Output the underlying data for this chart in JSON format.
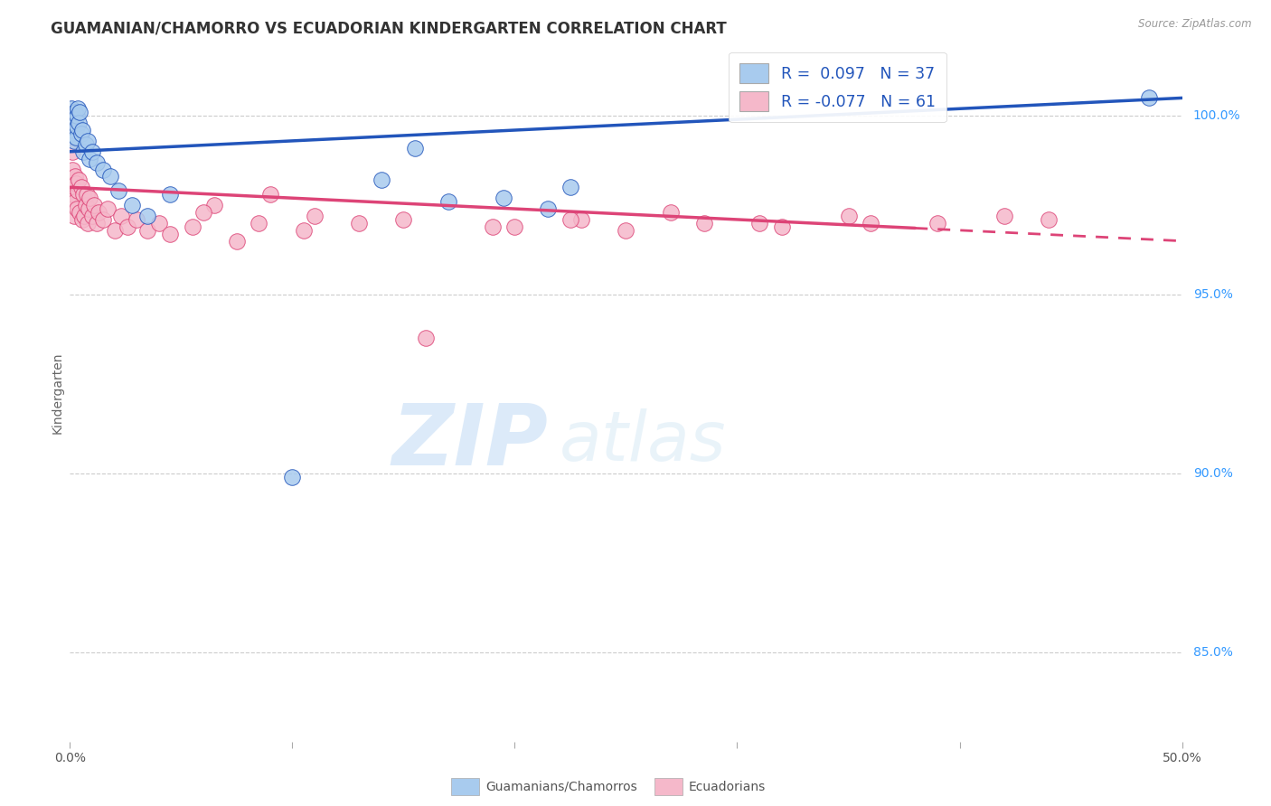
{
  "title": "GUAMANIAN/CHAMORRO VS ECUADORIAN KINDERGARTEN CORRELATION CHART",
  "source": "Source: ZipAtlas.com",
  "ylabel": "Kindergarten",
  "right_ytick_labels": [
    "100.0%",
    "95.0%",
    "90.0%",
    "85.0%"
  ],
  "right_ytick_values": [
    100.0,
    95.0,
    90.0,
    85.0
  ],
  "blue_R": 0.097,
  "blue_N": 37,
  "pink_R": -0.077,
  "pink_N": 61,
  "blue_color": "#A8CBEE",
  "pink_color": "#F5B8CA",
  "trendline_blue": "#2255BB",
  "trendline_pink": "#DD4477",
  "legend_label_blue": "Guamanians/Chamorros",
  "legend_label_pink": "Ecuadorians",
  "blue_points_x": [
    0.05,
    0.08,
    0.1,
    0.12,
    0.15,
    0.18,
    0.2,
    0.22,
    0.25,
    0.28,
    0.3,
    0.32,
    0.35,
    0.4,
    0.45,
    0.5,
    0.55,
    0.6,
    0.7,
    0.8,
    0.9,
    1.0,
    1.2,
    1.5,
    1.8,
    2.2,
    2.8,
    3.5,
    4.5,
    10.0,
    14.0,
    15.5,
    17.0,
    19.5,
    21.5,
    22.5,
    48.5
  ],
  "blue_points_y": [
    99.5,
    100.2,
    99.8,
    99.6,
    100.0,
    99.7,
    99.3,
    100.1,
    99.9,
    99.4,
    99.7,
    100.0,
    100.2,
    99.8,
    100.1,
    99.5,
    99.6,
    99.0,
    99.2,
    99.3,
    98.8,
    99.0,
    98.7,
    98.5,
    98.3,
    97.9,
    97.5,
    97.2,
    97.8,
    89.9,
    98.2,
    99.1,
    97.6,
    97.7,
    97.4,
    98.0,
    100.5
  ],
  "pink_points_x": [
    0.05,
    0.08,
    0.1,
    0.12,
    0.15,
    0.18,
    0.2,
    0.22,
    0.25,
    0.28,
    0.3,
    0.35,
    0.4,
    0.45,
    0.5,
    0.55,
    0.6,
    0.65,
    0.7,
    0.75,
    0.8,
    0.85,
    0.9,
    1.0,
    1.1,
    1.2,
    1.3,
    1.5,
    1.7,
    2.0,
    2.3,
    2.6,
    3.0,
    3.5,
    4.0,
    4.5,
    5.5,
    6.5,
    7.5,
    9.0,
    11.0,
    13.0,
    16.0,
    19.0,
    23.0,
    27.0,
    31.0,
    35.0,
    39.0,
    44.0,
    6.0,
    8.5,
    10.5,
    15.0,
    20.0,
    22.5,
    25.0,
    28.5,
    32.0,
    36.0,
    42.0
  ],
  "pink_points_y": [
    98.2,
    97.5,
    99.0,
    98.5,
    97.8,
    98.0,
    97.2,
    98.3,
    97.6,
    98.1,
    97.4,
    97.9,
    98.2,
    97.3,
    98.0,
    97.1,
    97.8,
    97.2,
    97.5,
    97.8,
    97.0,
    97.4,
    97.7,
    97.2,
    97.5,
    97.0,
    97.3,
    97.1,
    97.4,
    96.8,
    97.2,
    96.9,
    97.1,
    96.8,
    97.0,
    96.7,
    96.9,
    97.5,
    96.5,
    97.8,
    97.2,
    97.0,
    93.8,
    96.9,
    97.1,
    97.3,
    97.0,
    97.2,
    97.0,
    97.1,
    97.3,
    97.0,
    96.8,
    97.1,
    96.9,
    97.1,
    96.8,
    97.0,
    96.9,
    97.0,
    97.2
  ],
  "xmin": 0.0,
  "xmax": 50.0,
  "ymin": 82.5,
  "ymax": 102.0,
  "blue_trend_x0": 0.0,
  "blue_trend_y0": 99.0,
  "blue_trend_x1": 50.0,
  "blue_trend_y1": 100.5,
  "pink_trend_x0": 0.0,
  "pink_trend_y0": 98.0,
  "pink_trend_x1": 50.0,
  "pink_trend_y1": 96.5,
  "watermark_zip": "ZIP",
  "watermark_atlas": "atlas",
  "background_color": "#FFFFFF",
  "grid_color": "#CCCCCC"
}
